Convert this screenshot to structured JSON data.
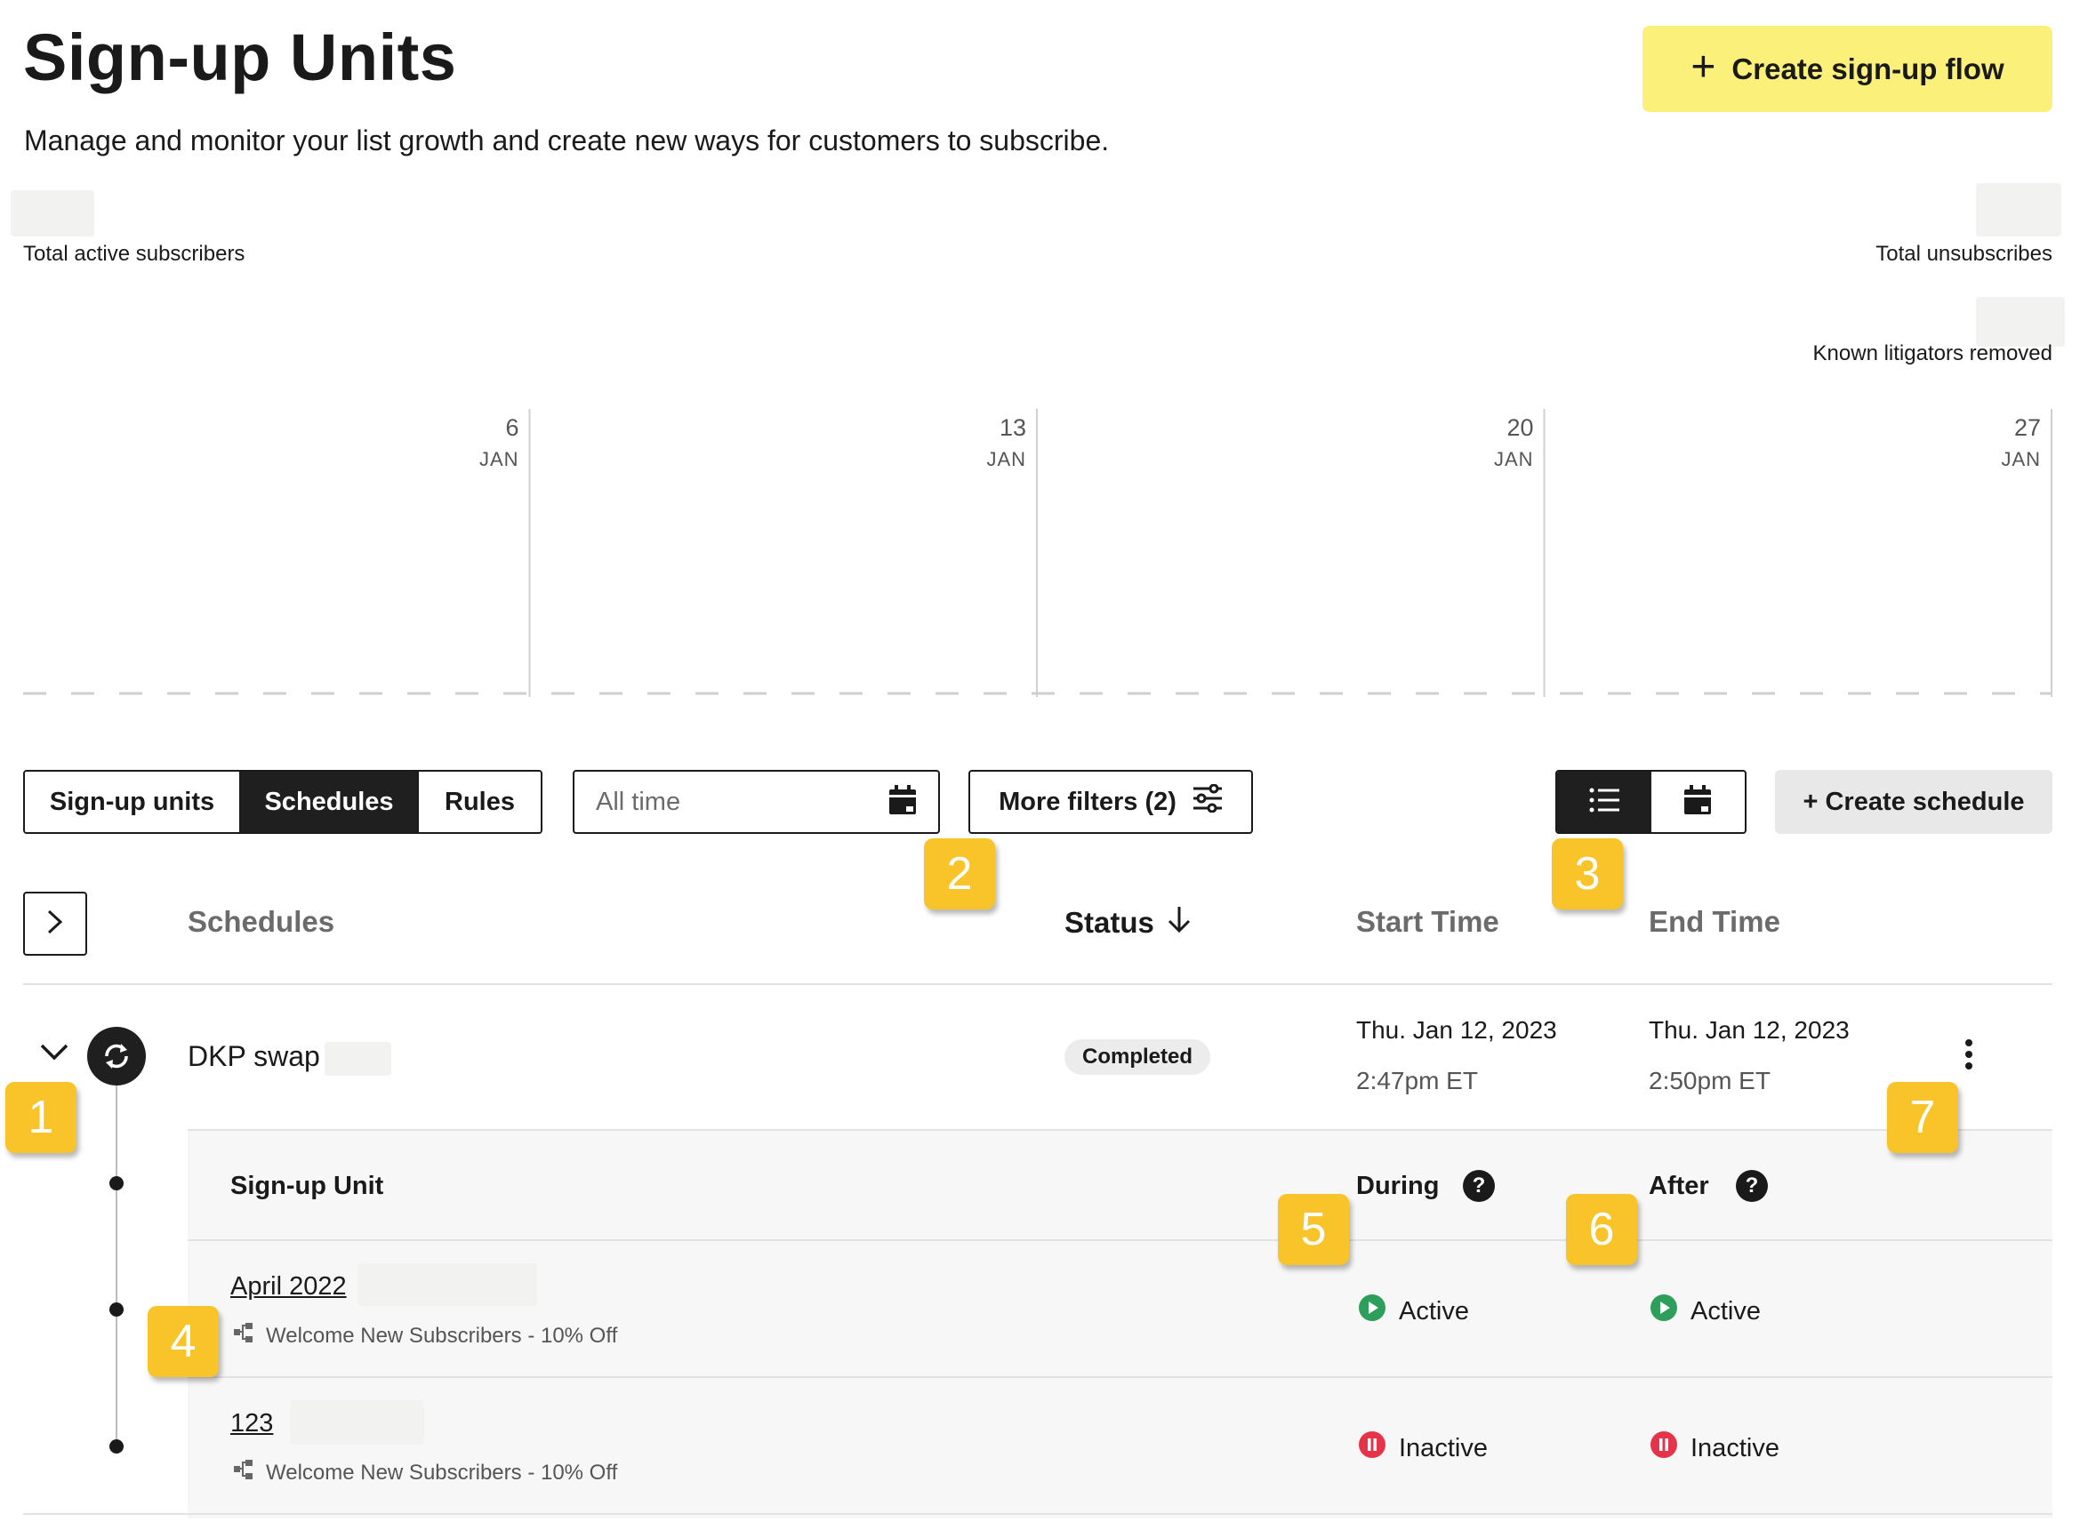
{
  "header": {
    "title": "Sign-up Units",
    "subtitle": "Manage and monitor your list growth and create new ways for customers to subscribe.",
    "create_flow_label": "Create sign-up flow"
  },
  "stats": {
    "total_active_label": "Total active subscribers",
    "total_unsub_label": "Total unsubscribes",
    "litigators_label": "Known litigators removed"
  },
  "chart_data": {
    "type": "line",
    "x": [
      "6 JAN",
      "13 JAN",
      "20 JAN",
      "27 JAN"
    ],
    "ticks": [
      {
        "day": "6",
        "month": "JAN"
      },
      {
        "day": "13",
        "month": "JAN"
      },
      {
        "day": "20",
        "month": "JAN"
      },
      {
        "day": "27",
        "month": "JAN"
      }
    ],
    "series": [],
    "title": "",
    "xlabel": "",
    "ylabel": "",
    "grid": "vertical",
    "colors": {
      "gridline": "#d0d0d0",
      "baseline": "#cfcfcf"
    }
  },
  "tabs": {
    "items": [
      {
        "label": "Sign-up units",
        "active": false
      },
      {
        "label": "Schedules",
        "active": true
      },
      {
        "label": "Rules",
        "active": false
      }
    ]
  },
  "filters": {
    "date_placeholder": "All time",
    "more_filters_label": "More filters (2)"
  },
  "actions": {
    "create_schedule_label": "+ Create schedule"
  },
  "table": {
    "headers": {
      "schedules": "Schedules",
      "status": "Status",
      "start": "Start Time",
      "end": "End Time"
    },
    "schedule": {
      "name": "DKP swap",
      "status": "Completed",
      "start_date": "Thu. Jan 12, 2023",
      "start_time": "2:47pm ET",
      "end_date": "Thu. Jan 12, 2023",
      "end_time": "2:50pm ET"
    },
    "sub_headers": {
      "unit": "Sign-up Unit",
      "during": "During",
      "after": "After"
    },
    "units": [
      {
        "name": "April 2022",
        "flow": "Welcome New Subscribers - 10% Off",
        "during": "Active",
        "after": "Active"
      },
      {
        "name": "123",
        "flow": "Welcome New Subscribers - 10% Off",
        "during": "Inactive",
        "after": "Inactive"
      }
    ]
  },
  "callouts": [
    "1",
    "2",
    "3",
    "4",
    "5",
    "6",
    "7"
  ],
  "colors": {
    "accent_yellow": "#fbf07a",
    "callout_yellow": "#f9c42a",
    "active_green": "#2e9e5b",
    "inactive_red": "#e5344a",
    "dark": "#1f1f1f"
  }
}
